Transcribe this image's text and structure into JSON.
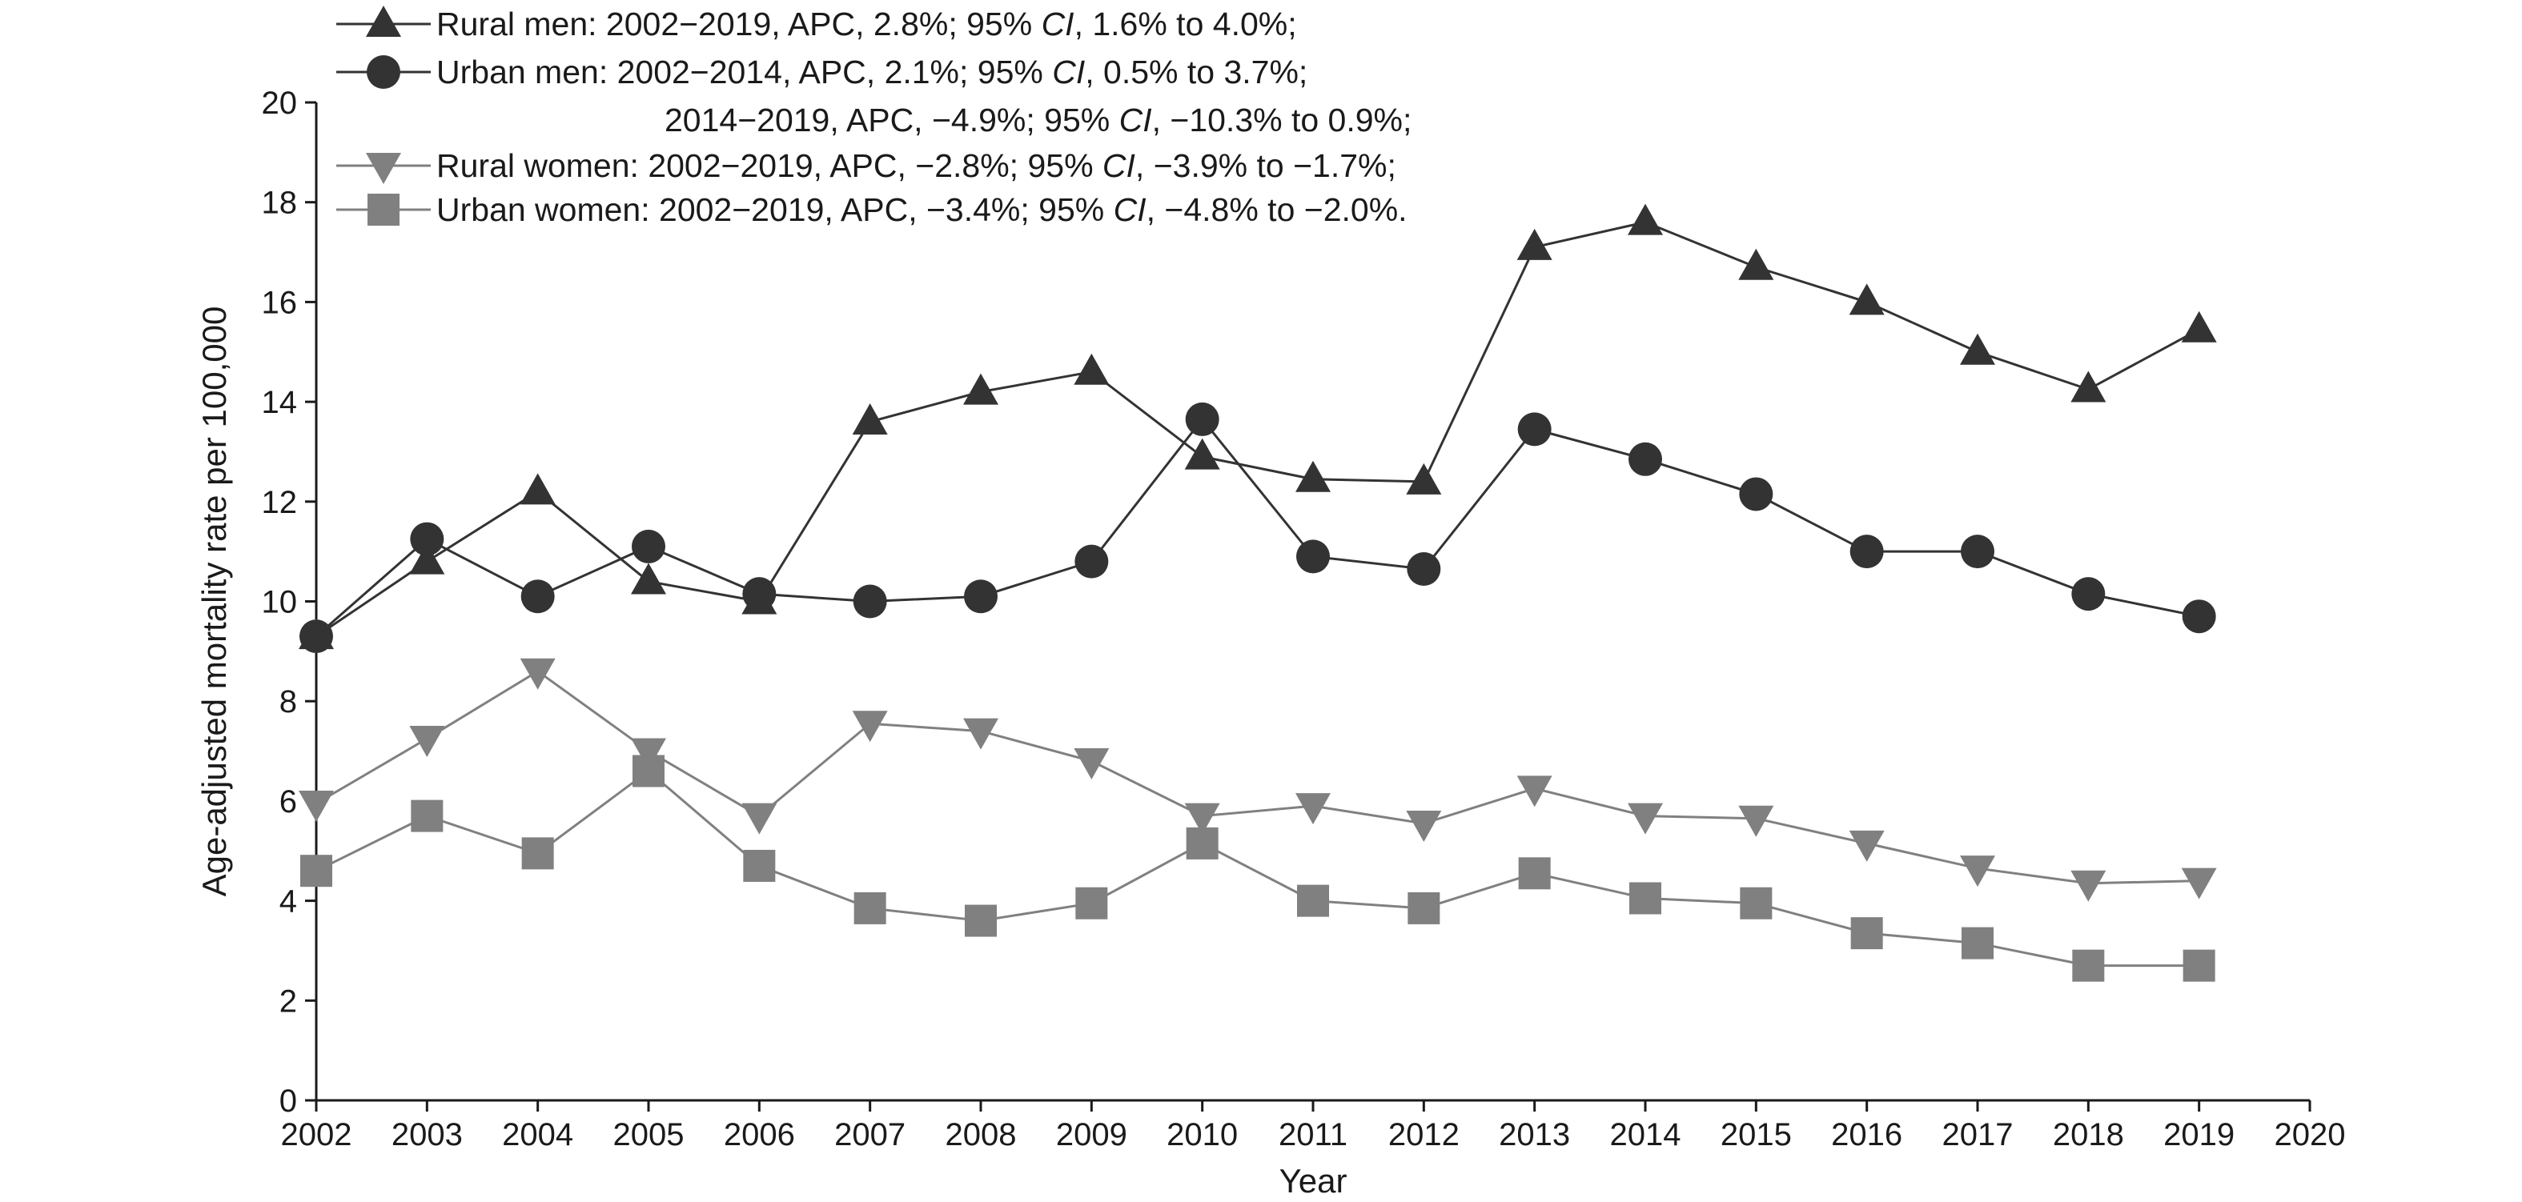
{
  "chart_data": {
    "type": "line",
    "xlabel": "Year",
    "ylabel": "Age-adjusted mortality rate per 100,000",
    "xlim": [
      2002,
      2020
    ],
    "ylim": [
      0,
      20
    ],
    "x_ticks": [
      "2002",
      "2003",
      "2004",
      "2005",
      "2006",
      "2007",
      "2008",
      "2009",
      "2010",
      "2011",
      "2012",
      "2013",
      "2014",
      "2015",
      "2016",
      "2017",
      "2018",
      "2019",
      "2020"
    ],
    "y_ticks": [
      "0",
      "2",
      "4",
      "6",
      "8",
      "10",
      "12",
      "14",
      "16",
      "18",
      "20"
    ],
    "grid": false,
    "legend_position": "top-left",
    "x": [
      2002,
      2003,
      2004,
      2005,
      2006,
      2007,
      2008,
      2009,
      2010,
      2011,
      2012,
      2013,
      2014,
      2015,
      2016,
      2017,
      2018,
      2019
    ],
    "series": [
      {
        "name": "Rural men",
        "marker": "triangle-up",
        "color": "#333333",
        "values": [
          9.3,
          10.8,
          12.2,
          10.4,
          10.0,
          13.6,
          14.2,
          14.6,
          12.9,
          12.45,
          12.4,
          17.1,
          17.6,
          16.7,
          16.0,
          15.0,
          14.25,
          15.45
        ]
      },
      {
        "name": "Urban men",
        "marker": "circle",
        "color": "#333333",
        "values": [
          9.3,
          11.25,
          10.1,
          11.1,
          10.15,
          10.0,
          10.1,
          10.8,
          13.65,
          10.9,
          10.65,
          13.45,
          12.85,
          12.15,
          11.0,
          11.0,
          10.15,
          9.7
        ]
      },
      {
        "name": "Rural women",
        "marker": "triangle-down",
        "color": "#808080",
        "values": [
          5.95,
          7.25,
          8.6,
          7.0,
          5.7,
          7.55,
          7.4,
          6.8,
          5.7,
          5.9,
          5.55,
          6.25,
          5.7,
          5.65,
          5.15,
          4.65,
          4.35,
          4.4
        ]
      },
      {
        "name": "Urban women",
        "marker": "square",
        "color": "#808080",
        "values": [
          4.6,
          5.7,
          4.95,
          6.6,
          4.7,
          3.85,
          3.6,
          3.95,
          5.15,
          4.0,
          3.85,
          4.55,
          4.05,
          3.95,
          3.35,
          3.15,
          2.7,
          2.7
        ]
      }
    ],
    "legend": [
      {
        "marker": "triangle-up",
        "color": "#333333",
        "lines": [
          "Rural men: 2002−2019, APC, 2.8%; 95% CI, 1.6% to 4.0%;"
        ]
      },
      {
        "marker": "circle",
        "color": "#333333",
        "lines": [
          "Urban men: 2002−2014, APC, 2.1%; 95% CI, 0.5% to 3.7%;",
          "2014−2019, APC, −4.9%; 95% CI, −10.3% to 0.9%;"
        ]
      },
      {
        "marker": "triangle-down",
        "color": "#808080",
        "lines": [
          "Rural women: 2002−2019, APC, −2.8%; 95% CI, −3.9% to −1.7%;"
        ]
      },
      {
        "marker": "square",
        "color": "#808080",
        "lines": [
          "Urban women: 2002−2019, APC, −3.4%; 95% CI, −4.8% to −2.0%."
        ]
      }
    ]
  }
}
